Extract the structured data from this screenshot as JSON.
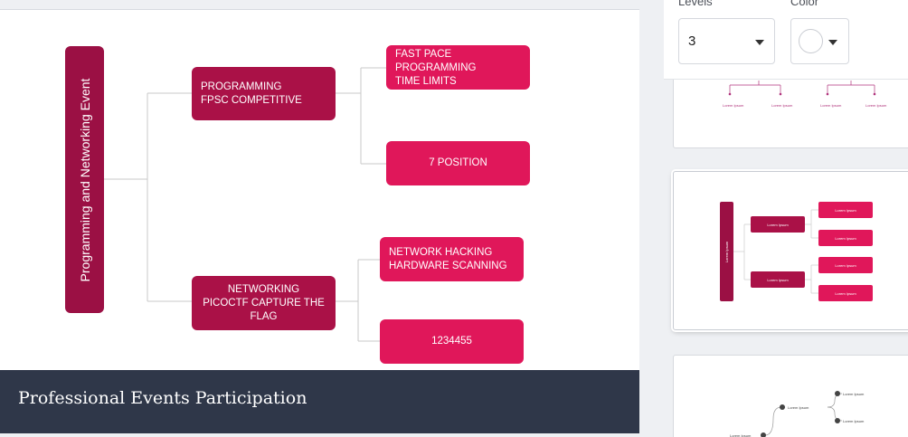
{
  "slide": {
    "footer_title": "Professional Events Participation",
    "root_label": "Programming and Networking Event",
    "branches": [
      {
        "label": "PROGRAMMING\nFPSC COMPETITIVE",
        "children": [
          "FAST PACE PROGRAMMING\nTIME LIMITS",
          "7 POSITION"
        ]
      },
      {
        "label": "NETWORKING\nPICOCTF CAPTURE THE\nFLAG",
        "children": [
          "NETWORK HACKING\nHARDWARE SCANNING",
          "1234455"
        ]
      }
    ]
  },
  "panel": {
    "levels_label": "Levels",
    "color_label": "Color",
    "levels_value": "3",
    "placeholder_text": "Lorem Ipsum"
  },
  "colors": {
    "root": "#9b1044",
    "branch": "#aa1147",
    "leaf": "#e0175a",
    "footer": "#2f3749"
  }
}
